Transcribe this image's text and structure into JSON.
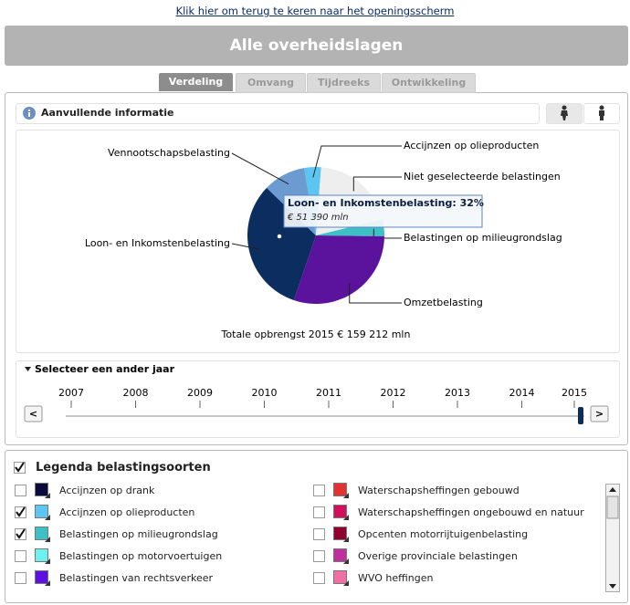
{
  "link": "Klik hier om terug te keren naar het openingsscherm",
  "header": {
    "title": "Alle overheidslagen"
  },
  "tabs": [
    {
      "label": "Verdeling",
      "active": true
    },
    {
      "label": "Omvang",
      "active": false
    },
    {
      "label": "Tijdreeks",
      "active": false
    },
    {
      "label": "Ontwikkeling",
      "active": false
    }
  ],
  "info": {
    "label": "Aanvullende informatie"
  },
  "chart_data": {
    "type": "pie",
    "categories": [
      "Accijnzen op olieproducten",
      "Niet geselecteerde belastingen",
      "Belastingen op milieugrondslag",
      "Omzetbelasting",
      "Loon- en Inkomstenbelasting",
      "Vennootschapsbelasting"
    ],
    "values": [
      4,
      20,
      4,
      30,
      32,
      10
    ],
    "colors": [
      "#5cc6f2",
      "#eeeeee",
      "#3fbfc6",
      "#5b139e",
      "#0b2d5f",
      "#6b9bd0"
    ],
    "tooltip": {
      "title": "Loon- en Inkomstenbelasting:  32%",
      "amount": "€ 51 390 mln"
    },
    "total": "Totale opbrengst 2015 € 159 212 mln"
  },
  "year_selector": {
    "title": "Selecteer een ander jaar",
    "years": [
      2007,
      2008,
      2009,
      2010,
      2011,
      2012,
      2013,
      2014,
      2015
    ],
    "prev": "<",
    "next": ">"
  },
  "legend": {
    "title": "Legenda belastingsoorten",
    "checked": true,
    "items": [
      {
        "name": "Accijnzen op drank",
        "color": "#0a0a3c",
        "checked": false
      },
      {
        "name": "Accijnzen op olieproducten",
        "color": "#5cc6f2",
        "checked": true
      },
      {
        "name": "Belastingen op milieugrondslag",
        "color": "#3fbfc6",
        "checked": true
      },
      {
        "name": "Belastingen op motorvoertuigen",
        "color": "#6ff0f0",
        "checked": false
      },
      {
        "name": "Belastingen van rechtsverkeer",
        "color": "#5e10e0",
        "checked": false
      },
      {
        "name": "Waterschapsheffingen gebouwd",
        "color": "#e03434",
        "checked": false
      },
      {
        "name": "Waterschapsheffingen ongebouwd en natuur",
        "color": "#d0105c",
        "checked": false
      },
      {
        "name": "Opcenten motorrijtuigenbelasting",
        "color": "#900030",
        "checked": false
      },
      {
        "name": "Overige provinciale belastingen",
        "color": "#c0309c",
        "checked": false
      },
      {
        "name": "WVO heffingen",
        "color": "#f070a4",
        "checked": false
      }
    ]
  }
}
